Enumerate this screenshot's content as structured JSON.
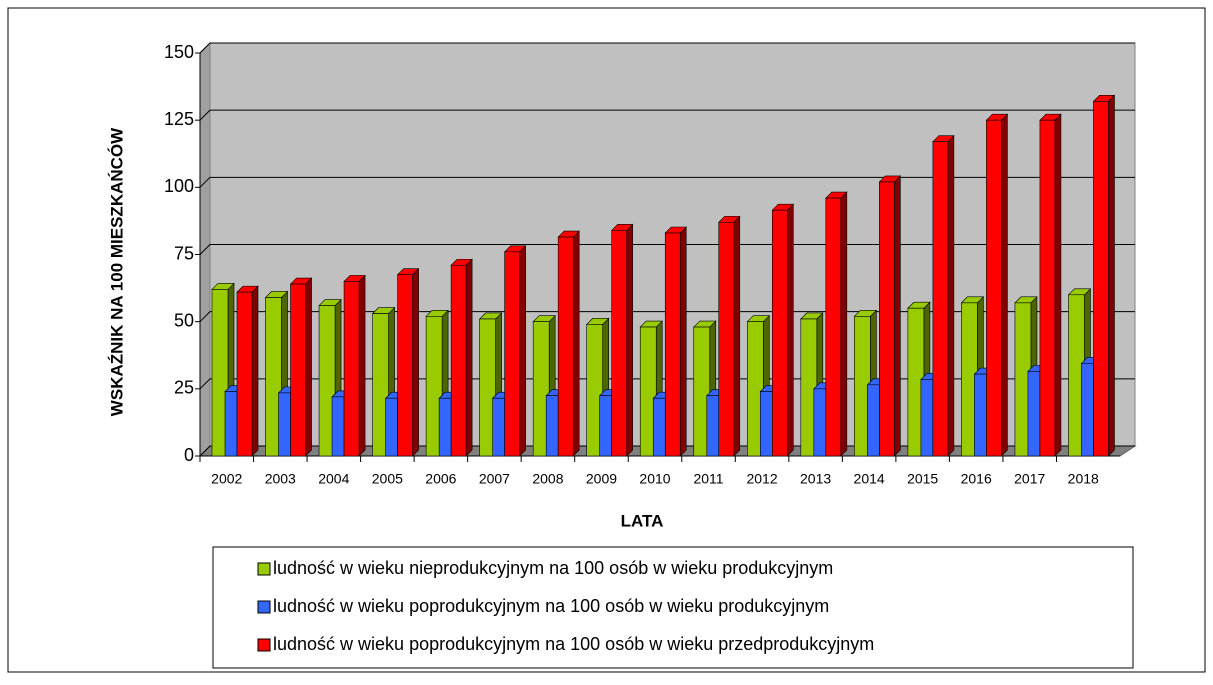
{
  "chart_data": {
    "type": "bar3d",
    "y_label": "WSKAŹNIK NA 100 MIESZKAŃCÓW",
    "x_label": "LATA",
    "categories": [
      "2002",
      "2003",
      "2004",
      "2005",
      "2006",
      "2007",
      "2008",
      "2009",
      "2010",
      "2011",
      "2012",
      "2013",
      "2014",
      "2015",
      "2016",
      "2017",
      "2018"
    ],
    "series": [
      {
        "name": "ludność w wieku nieprodukcyjnym na 100 osób w wieku produkcyjnym",
        "color": "#99cc00",
        "side": "#4d6600",
        "values": [
          62,
          59,
          56,
          53,
          52,
          51,
          50,
          49,
          48,
          48,
          50,
          51,
          52,
          55,
          57,
          57,
          60
        ]
      },
      {
        "name": "ludność w wieku poprodukcyjnym na 100 osób w wieku produkcyjnym",
        "color": "#3366ff",
        "side": "#1a33aa",
        "values": [
          24,
          23.5,
          22,
          21.5,
          21.5,
          21.5,
          22.5,
          22.5,
          21.5,
          22.5,
          24,
          25,
          26.5,
          28.5,
          30.5,
          31.5,
          34.5
        ]
      },
      {
        "name": "ludność w wieku poprodukcyjnym na 100 osób w wieku przedprodukcyjnym",
        "color": "#ff0000",
        "side": "#800000",
        "values": [
          61,
          64,
          65,
          67.5,
          71,
          76,
          81.5,
          84,
          83,
          87,
          91.5,
          96,
          102,
          117,
          125,
          125,
          132
        ]
      }
    ],
    "ylim": [
      0,
      150
    ],
    "yticks": [
      0,
      25,
      50,
      75,
      100,
      125,
      150
    ],
    "grid": true
  }
}
